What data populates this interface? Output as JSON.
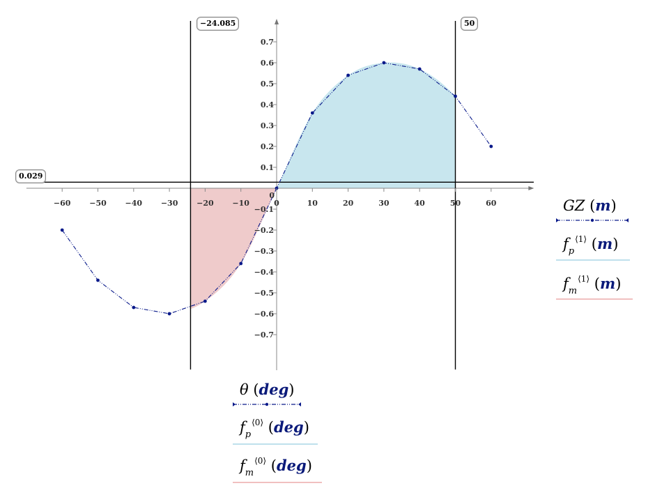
{
  "chart_data": {
    "type": "line",
    "x": [
      -60,
      -50,
      -40,
      -30,
      -20,
      -10,
      0,
      10,
      20,
      30,
      40,
      50,
      60
    ],
    "series": [
      {
        "name": "GZ (m)",
        "values": [
          -0.2,
          -0.44,
          -0.57,
          -0.6,
          -0.54,
          -0.36,
          0,
          0.36,
          0.54,
          0.6,
          0.57,
          0.44,
          0.2
        ],
        "color": "#0a1a8a"
      }
    ],
    "fill_positive": {
      "from": 0,
      "to": 50,
      "color": "#c8e6ee"
    },
    "fill_negative": {
      "from": -24.085,
      "to": 0,
      "color": "#efcbcb"
    },
    "xlim": [
      -70,
      72
    ],
    "ylim": [
      -0.87,
      0.81
    ],
    "x_ticks": [
      "-60",
      "-50",
      "-40",
      "-30",
      "-20",
      "-10",
      "0",
      "10",
      "20",
      "30",
      "40",
      "50",
      "60"
    ],
    "y_ticks": [
      "-0.7",
      "-0.6",
      "-0.5",
      "-0.4",
      "-0.3",
      "-0.2",
      "-0.1",
      "0.1",
      "0.2",
      "0.3",
      "0.4",
      "0.5",
      "0.6",
      "0.7"
    ],
    "markers": {
      "vertical_left": "−24.085",
      "vertical_right": "50",
      "horizontal": "0.029"
    }
  },
  "legend_right": [
    {
      "base": "GZ",
      "sub": "",
      "sup": "",
      "unit": "m",
      "color": "#0a1a8a"
    },
    {
      "base": "f",
      "sub": "p",
      "sup": "⟨1⟩",
      "unit": "m",
      "color": "#bfe0ec"
    },
    {
      "base": "f",
      "sub": "m",
      "sup": "⟨1⟩",
      "unit": "m",
      "color": "#f1c0c0"
    }
  ],
  "legend_bottom": [
    {
      "base": "θ",
      "sub": "",
      "sup": "",
      "unit": "deg",
      "color": "#0a1a8a"
    },
    {
      "base": "f",
      "sub": "p",
      "sup": "⟨0⟩",
      "unit": "deg",
      "color": "#bfe0ec"
    },
    {
      "base": "f",
      "sub": "m",
      "sup": "⟨0⟩",
      "unit": "deg",
      "color": "#f1c0c0"
    }
  ]
}
